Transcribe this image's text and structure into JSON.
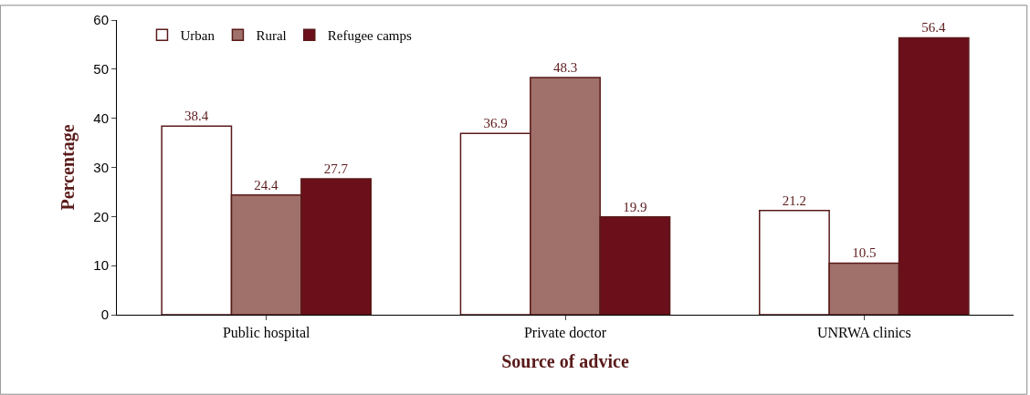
{
  "chart_data": {
    "type": "bar",
    "xlabel": "Source of advice",
    "ylabel": "Percentage",
    "categories": [
      "Public hospital",
      "Private doctor",
      "UNRWA clinics"
    ],
    "series": [
      {
        "name": "Urban",
        "color": "#ffffff",
        "values": [
          38.4,
          36.9,
          21.2
        ]
      },
      {
        "name": "Rural",
        "color": "#a0706a",
        "values": [
          24.4,
          48.3,
          10.5
        ]
      },
      {
        "name": "Refugee camps",
        "color": "#6b0f1a",
        "values": [
          27.7,
          19.9,
          56.4
        ]
      }
    ],
    "ylim": [
      0,
      60
    ],
    "yticks": [
      0,
      10,
      20,
      30,
      40,
      50,
      60
    ],
    "data_labels": true,
    "legend": "top left"
  }
}
